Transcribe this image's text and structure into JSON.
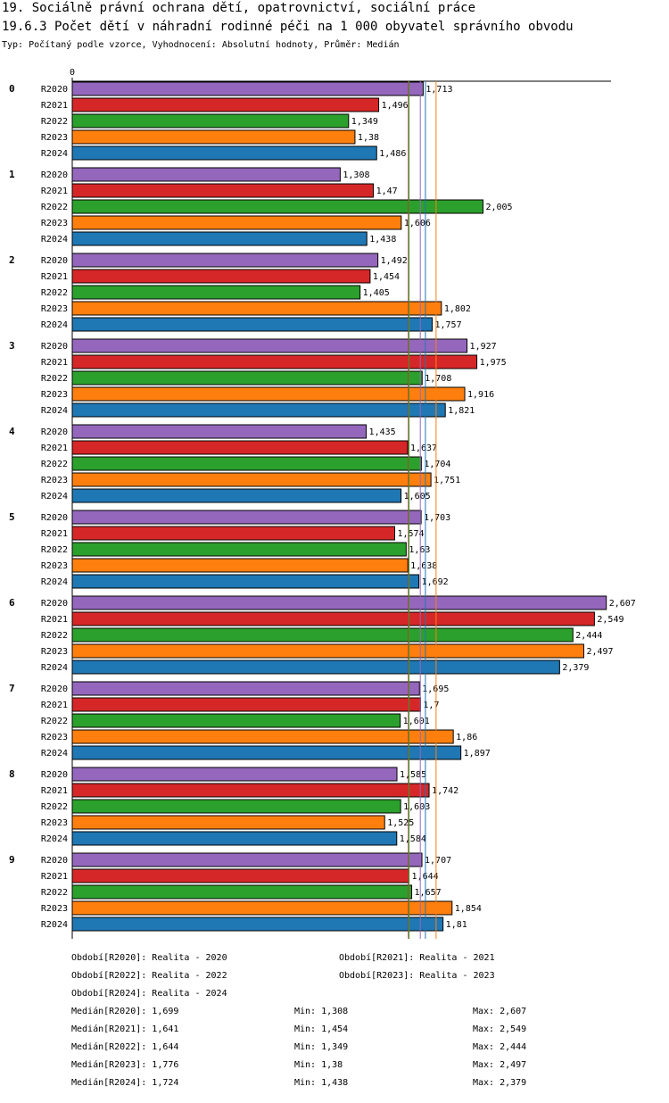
{
  "chart_data": {
    "type": "hbar-grouped",
    "title": "19. Sociálně právní ochrana dětí, opatrovnictví, sociální práce",
    "subtitle": "19.6.3 Počet dětí v náhradní rodinné péči na 1 000 obyvatel správního obvodu",
    "note": "Typ: Počítaný podle vzorce, Vyhodnocení: Absolutní hodnoty, Průměr: Medián",
    "categories": [
      "0",
      "1",
      "2",
      "3",
      "4",
      "5",
      "6",
      "7",
      "8",
      "9"
    ],
    "xlim": [
      0,
      2.63
    ],
    "xticks": [
      0
    ],
    "series": [
      {
        "name": "R2020",
        "color": "#9467bd",
        "values": [
          1.713,
          1.308,
          1.492,
          1.927,
          1.435,
          1.703,
          2.607,
          1.695,
          1.585,
          1.707
        ],
        "value_labels": [
          "1,713",
          "1,308",
          "1,492",
          "1,927",
          "1,435",
          "1,703",
          "2,607",
          "1,695",
          "1,585",
          "1,707"
        ]
      },
      {
        "name": "R2021",
        "color": "#d62728",
        "values": [
          1.496,
          1.47,
          1.454,
          1.975,
          1.637,
          1.574,
          2.549,
          1.7,
          1.742,
          1.644
        ],
        "value_labels": [
          "1,496",
          "1,47",
          "1,454",
          "1,975",
          "1,637",
          "1,574",
          "2,549",
          "1,7",
          "1,742",
          "1,644"
        ]
      },
      {
        "name": "R2022",
        "color": "#2ca02c",
        "values": [
          1.349,
          2.005,
          1.405,
          1.708,
          1.704,
          1.63,
          2.444,
          1.601,
          1.603,
          1.657
        ],
        "value_labels": [
          "1,349",
          "2,005",
          "1,405",
          "1,708",
          "1,704",
          "1,63",
          "2,444",
          "1,601",
          "1,603",
          "1,657"
        ]
      },
      {
        "name": "R2023",
        "color": "#ff7f0e",
        "values": [
          1.38,
          1.606,
          1.802,
          1.916,
          1.751,
          1.638,
          2.497,
          1.86,
          1.525,
          1.854
        ],
        "value_labels": [
          "1,38",
          "1,606",
          "1,802",
          "1,916",
          "1,751",
          "1,638",
          "2,497",
          "1,86",
          "1,525",
          "1,854"
        ]
      },
      {
        "name": "R2024",
        "color": "#1f77b4",
        "values": [
          1.486,
          1.438,
          1.757,
          1.821,
          1.605,
          1.692,
          2.379,
          1.897,
          1.584,
          1.81
        ],
        "value_labels": [
          "1,486",
          "1,438",
          "1,757",
          "1,821",
          "1,605",
          "1,692",
          "2,379",
          "1,897",
          "1,584",
          "1,81"
        ]
      }
    ],
    "legend": [
      "Období[R2020]: Realita - 2020",
      "Období[R2021]: Realita - 2021",
      "Období[R2022]: Realita - 2022",
      "Období[R2023]: Realita - 2023",
      "Období[R2024]: Realita - 2024"
    ],
    "stats": [
      {
        "median": {
          "value": 1.699,
          "label": "Medián[R2020]: 1,699"
        },
        "min": "Min: 1,308",
        "max": "Max: 2,607"
      },
      {
        "median": {
          "value": 1.641,
          "label": "Medián[R2021]: 1,641"
        },
        "min": "Min: 1,454",
        "max": "Max: 2,549"
      },
      {
        "median": {
          "value": 1.644,
          "label": "Medián[R2022]: 1,644"
        },
        "min": "Min: 1,349",
        "max": "Max: 2,444"
      },
      {
        "median": {
          "value": 1.776,
          "label": "Medián[R2023]: 1,776"
        },
        "min": "Min: 1,38",
        "max": "Max: 2,497"
      },
      {
        "median": {
          "value": 1.724,
          "label": "Medián[R2024]: 1,724"
        },
        "min": "Min: 1,438",
        "max": "Max: 2,379"
      }
    ]
  }
}
